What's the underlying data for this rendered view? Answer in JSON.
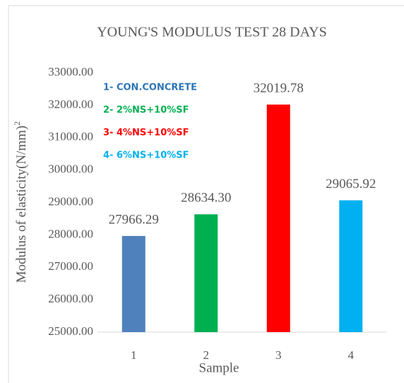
{
  "chart_data": {
    "type": "bar",
    "title": "YOUNG'S MODULUS TEST 28 DAYS",
    "x_label": "Sample",
    "y_label": "Modulus of elasticity(N/mm)",
    "y_label_superscript": "2",
    "categories": [
      "1",
      "2",
      "3",
      "4"
    ],
    "values": [
      27966.29,
      28634.3,
      32019.78,
      29065.92
    ],
    "value_labels": [
      "27966.29",
      "28634.30",
      "32019.78",
      "29065.92"
    ],
    "colors": [
      "#4f81bd",
      "#00b050",
      "#ff0000",
      "#00b0f0"
    ],
    "ylim": [
      25000,
      33000
    ],
    "yticks": [
      {
        "value": 25000,
        "label": "25000.00"
      },
      {
        "value": 26000,
        "label": "26000.00"
      },
      {
        "value": 27000,
        "label": "27000.00"
      },
      {
        "value": 28000,
        "label": "28000.00"
      },
      {
        "value": 29000,
        "label": "29000.00"
      },
      {
        "value": 30000,
        "label": "30000.00"
      },
      {
        "value": 31000,
        "label": "31000.00"
      },
      {
        "value": 32000,
        "label": "32000.00"
      },
      {
        "value": 33000,
        "label": "33000.00"
      }
    ],
    "grid": false,
    "annotations": [
      {
        "text": "1- CON.CONCRETE",
        "color": "#2e75b6"
      },
      {
        "text": "2- 2%NS+10%SF",
        "color": "#00b050"
      },
      {
        "text": "3- 4%NS+10%SF",
        "color": "#ff0000"
      },
      {
        "text": "4- 6%NS+10%SF",
        "color": "#00b0f0"
      }
    ]
  }
}
